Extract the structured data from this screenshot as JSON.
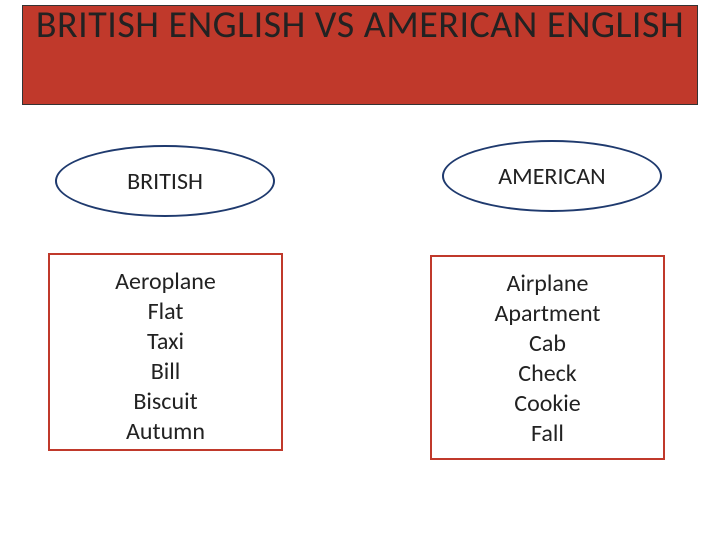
{
  "title": "BRITISH ENGLISH VS AMERICAN ENGLISH",
  "colors": {
    "title_bg": "#c0392b",
    "ellipse_border": "#1f3a6e",
    "box_border": "#c0392b",
    "text": "#222222",
    "background": "#ffffff"
  },
  "columns": {
    "left": {
      "heading": "BRITISH",
      "words": [
        "Aeroplane",
        "Flat",
        "Taxi",
        "Bill",
        "Biscuit",
        "Autumn"
      ]
    },
    "right": {
      "heading": "AMERICAN",
      "words": [
        "Airplane",
        "Apartment",
        "Cab",
        "Check",
        "Cookie",
        "Fall"
      ]
    }
  }
}
